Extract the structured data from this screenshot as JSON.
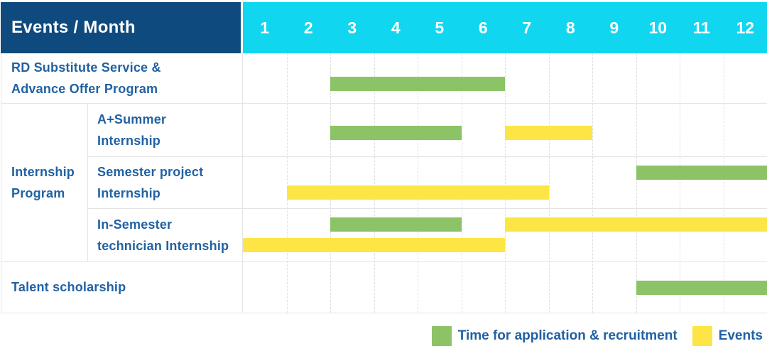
{
  "header": {
    "title": "Events / Month",
    "months": [
      "1",
      "2",
      "3",
      "4",
      "5",
      "6",
      "7",
      "8",
      "9",
      "10",
      "11",
      "12"
    ]
  },
  "table": {
    "row_labels": {
      "rd": [
        "RD Substitute Service &",
        "Advance Offer Program"
      ],
      "internship_group": [
        "Internship",
        "Program"
      ],
      "a_summer": [
        "A+Summer",
        "Internship"
      ],
      "semester_project": [
        "Semester project",
        "Internship"
      ],
      "in_semester": [
        "In-Semester",
        "technician Internship"
      ],
      "talent": [
        "Talent scholarship"
      ]
    }
  },
  "chart_data": {
    "type": "gantt",
    "x_unit": "month",
    "x_range": [
      1,
      12
    ],
    "rows": [
      {
        "label": "RD Substitute Service & Advance Offer Program",
        "group": null,
        "bars": [
          {
            "series": "application",
            "start_month": 3,
            "end_month": 6,
            "lane": "c"
          }
        ]
      },
      {
        "label": "A+Summer Internship",
        "group": "Internship Program",
        "bars": [
          {
            "series": "application",
            "start_month": 3,
            "end_month": 5,
            "lane": "c"
          },
          {
            "series": "event",
            "start_month": 7,
            "end_month": 8,
            "lane": "c"
          }
        ]
      },
      {
        "label": "Semester project Internship",
        "group": "Internship Program",
        "bars": [
          {
            "series": "application",
            "start_month": 10,
            "end_month": 12,
            "lane": "t"
          },
          {
            "series": "event",
            "start_month": 2,
            "end_month": 7,
            "lane": "b"
          }
        ]
      },
      {
        "label": "In-Semester technician Internship",
        "group": "Internship Program",
        "bars": [
          {
            "series": "application",
            "start_month": 3,
            "end_month": 5,
            "lane": "t"
          },
          {
            "series": "event",
            "start_month": 7,
            "end_month": 12,
            "lane": "t"
          },
          {
            "series": "event",
            "start_month": 1,
            "end_month": 6,
            "lane": "b"
          }
        ]
      },
      {
        "label": "Talent scholarship",
        "group": null,
        "bars": [
          {
            "series": "application",
            "start_month": 10,
            "end_month": 12,
            "lane": "c"
          }
        ]
      }
    ],
    "series": {
      "application": "Time for application & recruitment",
      "event": "Events"
    }
  },
  "legend": {
    "items": [
      {
        "series": "application",
        "label": "Time for application & recruitment"
      },
      {
        "series": "event",
        "label": "Events"
      }
    ]
  },
  "palette": {
    "header_blue": "#0f4a7e",
    "month_cyan": "#10d7ef",
    "application_green": "#8bc366",
    "event_yellow": "#fde545",
    "label_blue": "#2161a3",
    "grid_gray": "#e4e4e4"
  }
}
